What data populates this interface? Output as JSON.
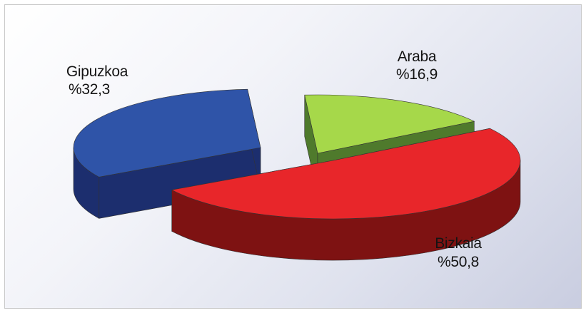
{
  "chart_data": {
    "type": "pie",
    "style": "3d-exploded",
    "title": "",
    "slices": [
      {
        "label": "Araba",
        "value_text": "%16,9",
        "value": 16.9,
        "color": "#a6d84a",
        "side_color": "#4f7a2c"
      },
      {
        "label": "Bizkaia",
        "value_text": "%50,8",
        "value": 50.8,
        "color": "#e8262a",
        "side_color": "#7e1212"
      },
      {
        "label": "Gipuzkoa",
        "value_text": "%32,3",
        "value": 32.3,
        "color": "#2f54a8",
        "side_color": "#1c2e6e"
      }
    ],
    "legend": "none",
    "grid": false
  }
}
